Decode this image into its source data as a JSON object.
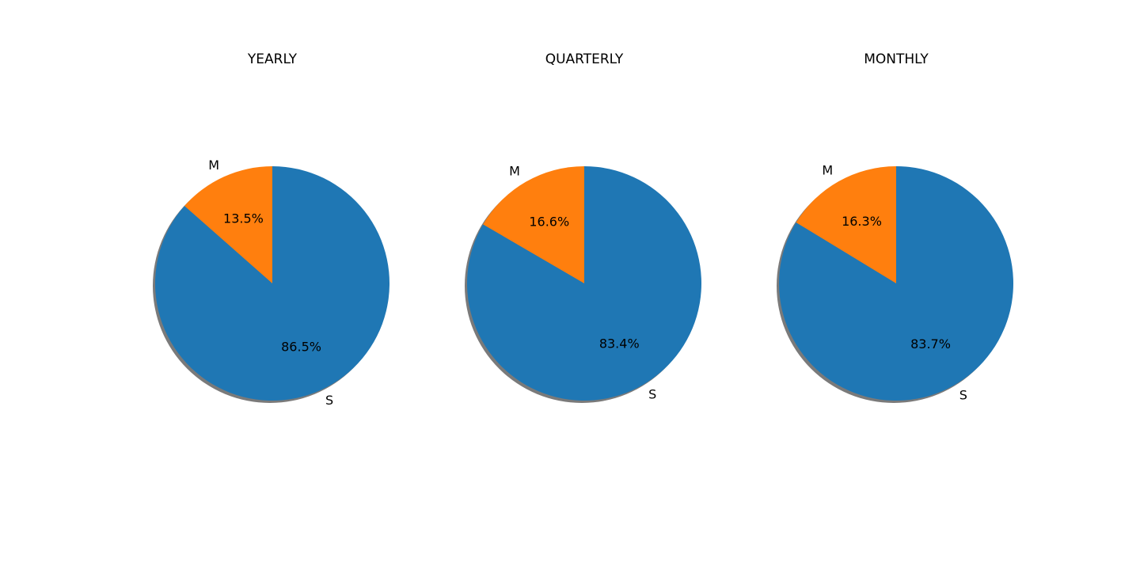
{
  "chart_data": [
    {
      "type": "pie",
      "title": "YEARLY",
      "slices": [
        {
          "label": "M",
          "value": 13.5,
          "pct_text": "13.5%",
          "color": "#ff7f0e"
        },
        {
          "label": "S",
          "value": 86.5,
          "pct_text": "86.5%",
          "color": "#1f77b4"
        }
      ]
    },
    {
      "type": "pie",
      "title": "QUARTERLY",
      "slices": [
        {
          "label": "M",
          "value": 16.6,
          "pct_text": "16.6%",
          "color": "#ff7f0e"
        },
        {
          "label": "S",
          "value": 83.4,
          "pct_text": "83.4%",
          "color": "#1f77b4"
        }
      ]
    },
    {
      "type": "pie",
      "title": "MONTHLY",
      "slices": [
        {
          "label": "M",
          "value": 16.3,
          "pct_text": "16.3%",
          "color": "#ff7f0e"
        },
        {
          "label": "S",
          "value": 83.7,
          "pct_text": "83.7%",
          "color": "#1f77b4"
        }
      ]
    }
  ]
}
